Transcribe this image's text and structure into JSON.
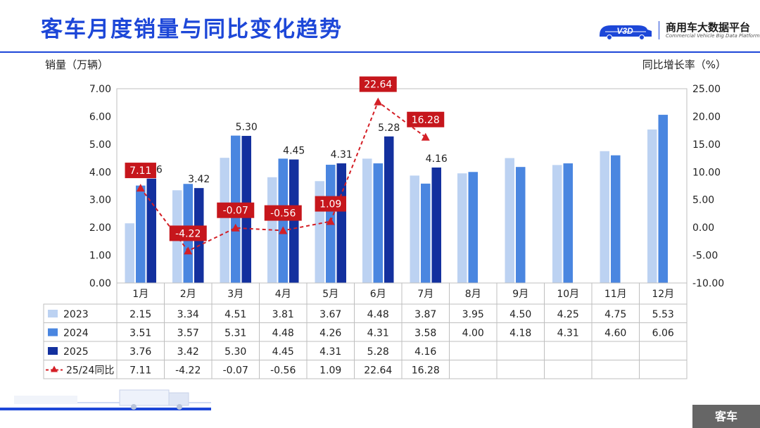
{
  "header": {
    "title": "客车月度销量与同比变化趋势",
    "logo_mark": "V3D",
    "logo_cn": "商用车大数据平台",
    "logo_en": "Commercial Vehicle Big Data Platform"
  },
  "footer": {
    "tag": "客车"
  },
  "colors": {
    "s2023": "#bcd2f2",
    "s2024": "#4a86e0",
    "s2025": "#13309e",
    "yoy": "#d41f26",
    "brand": "#1d47d8"
  },
  "chart_data": {
    "type": "bar",
    "categories": [
      "1月",
      "2月",
      "3月",
      "4月",
      "5月",
      "6月",
      "7月",
      "8月",
      "9月",
      "10月",
      "11月",
      "12月"
    ],
    "ylabel_left": "销量（万辆）",
    "ylabel_right": "同比增长率（%）",
    "ylim_left": [
      0,
      7
    ],
    "ylim_right": [
      -10,
      25
    ],
    "yticks_left": [
      "0.00",
      "1.00",
      "2.00",
      "3.00",
      "4.00",
      "5.00",
      "6.00",
      "7.00"
    ],
    "yticks_right": [
      "-10.00",
      "-5.00",
      "0.00",
      "5.00",
      "10.00",
      "15.00",
      "20.00",
      "25.00"
    ],
    "grid": false,
    "series": [
      {
        "name": "2023",
        "type": "bar",
        "values": [
          2.15,
          3.34,
          4.51,
          3.81,
          3.67,
          4.48,
          3.87,
          3.95,
          4.5,
          4.25,
          4.75,
          5.53
        ],
        "table": [
          "2.15",
          "3.34",
          "4.51",
          "3.81",
          "3.67",
          "4.48",
          "3.87",
          "3.95",
          "4.50",
          "4.25",
          "4.75",
          "5.53"
        ]
      },
      {
        "name": "2024",
        "type": "bar",
        "values": [
          3.51,
          3.57,
          5.31,
          4.48,
          4.26,
          4.31,
          3.58,
          4.0,
          4.18,
          4.31,
          4.6,
          6.06
        ],
        "table": [
          "3.51",
          "3.57",
          "5.31",
          "4.48",
          "4.26",
          "4.31",
          "3.58",
          "4.00",
          "4.18",
          "4.31",
          "4.60",
          "6.06"
        ]
      },
      {
        "name": "2025",
        "type": "bar",
        "values": [
          3.76,
          3.42,
          5.3,
          4.45,
          4.31,
          5.28,
          4.16,
          null,
          null,
          null,
          null,
          null
        ],
        "table": [
          "3.76",
          "3.42",
          "5.30",
          "4.45",
          "4.31",
          "5.28",
          "4.16",
          "",
          "",
          "",
          "",
          ""
        ]
      },
      {
        "name": "25/24同比",
        "type": "line",
        "axis": "right",
        "values": [
          7.11,
          -4.22,
          -0.07,
          -0.56,
          1.09,
          22.64,
          16.28,
          null,
          null,
          null,
          null,
          null
        ],
        "table": [
          "7.11",
          "-4.22",
          "-0.07",
          "-0.56",
          "1.09",
          "22.64",
          "16.28",
          "",
          "",
          "",
          "",
          ""
        ]
      }
    ],
    "bar_labels_2025": [
      "3.76",
      "3.42",
      "5.30",
      "4.45",
      "4.31",
      "5.28",
      "4.16"
    ],
    "yoy_labels": [
      "7.11",
      "-4.22",
      "-0.07",
      "-0.56",
      "1.09",
      "22.64",
      "16.28"
    ]
  }
}
